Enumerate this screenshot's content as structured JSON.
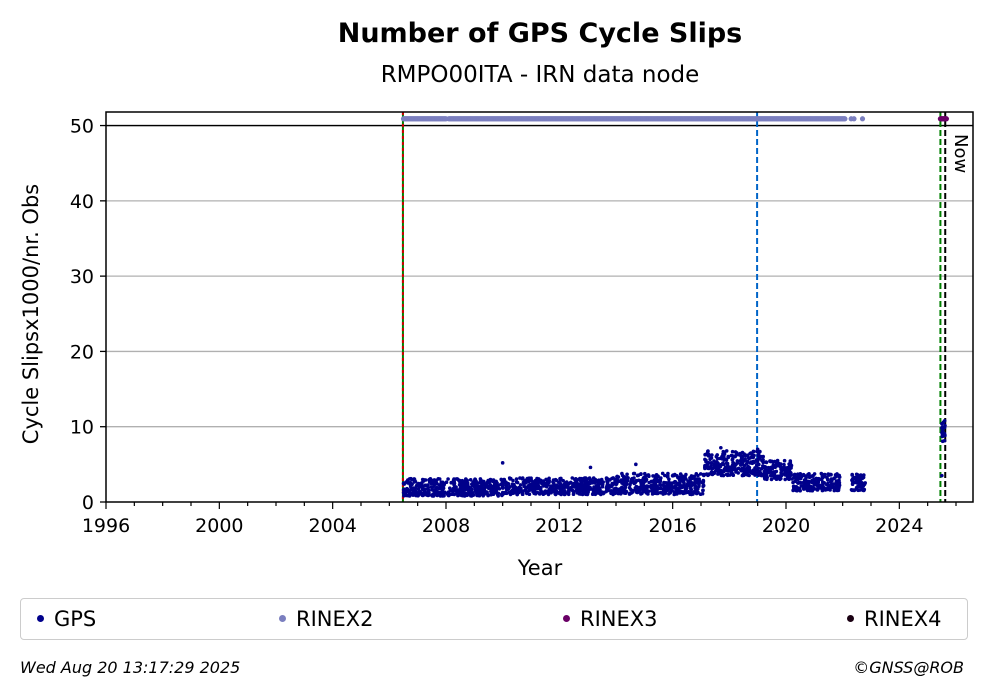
{
  "chart_data": {
    "type": "scatter",
    "title": "Number of GPS Cycle Slips",
    "subtitle": "RMPO00ITA - IRN data node",
    "xlabel": "Year",
    "ylabel": "Cycle Slipsx1000/nr. Obs",
    "xlim": [
      1996,
      2026.6
    ],
    "ylim": [
      0,
      51.8
    ],
    "x_ticks": [
      1996,
      2000,
      2004,
      2008,
      2012,
      2016,
      2020,
      2024
    ],
    "y_ticks": [
      0,
      10,
      20,
      30,
      40,
      50
    ],
    "grid": "y",
    "legend_position": "bottom",
    "series": [
      {
        "name": "GPS",
        "color": "#00008b",
        "segments": [
          {
            "x_start": 2006.5,
            "x_end": 2010.0,
            "y_min": 0.8,
            "y_max": 3.1
          },
          {
            "x_start": 2010.0,
            "x_end": 2014.0,
            "y_min": 1.0,
            "y_max": 3.2
          },
          {
            "x_start": 2014.0,
            "x_end": 2017.1,
            "y_min": 1.0,
            "y_max": 3.8
          },
          {
            "x_start": 2017.1,
            "x_end": 2019.2,
            "y_min": 3.5,
            "y_max": 6.8
          },
          {
            "x_start": 2019.2,
            "x_end": 2020.2,
            "y_min": 3.0,
            "y_max": 5.5
          },
          {
            "x_start": 2020.2,
            "x_end": 2021.9,
            "y_min": 1.5,
            "y_max": 3.8
          },
          {
            "x_start": 2022.3,
            "x_end": 2022.8,
            "y_min": 1.5,
            "y_max": 3.8
          },
          {
            "x_start": 2025.5,
            "x_end": 2025.62,
            "y_min": 8.0,
            "y_max": 10.8
          }
        ],
        "outliers": [
          {
            "x": 2010.0,
            "y": 5.2
          },
          {
            "x": 2013.1,
            "y": 4.6
          },
          {
            "x": 2014.7,
            "y": 5.0
          },
          {
            "x": 2017.7,
            "y": 7.2
          },
          {
            "x": 2019.0,
            "y": 7.0
          },
          {
            "x": 2025.5,
            "y": 3.5
          }
        ]
      },
      {
        "name": "RINEX2",
        "color": "#7b7fbf",
        "y": 50.9,
        "ranges": [
          [
            2006.5,
            2008.0
          ],
          [
            2008.1,
            2022.1
          ]
        ],
        "points": [
          2022.3,
          2022.4,
          2022.7
        ]
      },
      {
        "name": "RINEX3",
        "color": "#6a0066",
        "y": 50.9,
        "ranges": [
          [
            2025.45,
            2025.68
          ]
        ]
      },
      {
        "name": "RINEX4",
        "color": "#1a0012",
        "points": []
      }
    ],
    "reference_lines": [
      {
        "x": 2006.48,
        "color": "#008000",
        "style": "solid"
      },
      {
        "x": 2006.48,
        "color": "#cc0000",
        "style": "dotted"
      },
      {
        "x": 2018.98,
        "color": "#0064c8",
        "style": "dashed"
      },
      {
        "x": 2025.45,
        "color": "#008000",
        "style": "dashed"
      },
      {
        "x": 2025.62,
        "color": "#000000",
        "style": "dashed"
      }
    ],
    "reference_level": 50,
    "annotation": "Now"
  },
  "footer": {
    "timestamp": "Wed Aug 20 13:17:29 2025",
    "credit": "©GNSS@ROB"
  }
}
